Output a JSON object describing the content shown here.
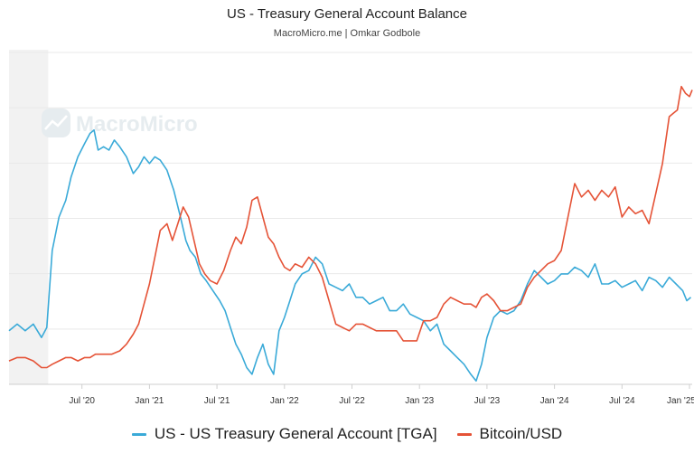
{
  "chart_data": {
    "type": "line",
    "title": "US - Treasury General Account Balance",
    "subtitle": "MacroMicro.me | Omkar Godbole",
    "watermark": "MacroMicro",
    "xlabel": "",
    "ylabel": "",
    "x_ticks": [
      "Jul '20",
      "Jan '21",
      "Jul '21",
      "Jan '22",
      "Jul '22",
      "Jan '23",
      "Jul '23",
      "Jan '24",
      "Jul '24",
      "Jan '25"
    ],
    "x_tick_times": [
      2020.5,
      2021.0,
      2021.5,
      2022.0,
      2022.5,
      2023.0,
      2023.5,
      2024.0,
      2024.5,
      2025.0
    ],
    "xlim": [
      2019.96,
      2025.02
    ],
    "shaded_region": [
      2019.96,
      2020.25
    ],
    "y_axis_labels": "hidden",
    "ylim": [
      0,
      100
    ],
    "series": [
      {
        "name": "US - US Treasury General Account [TGA]",
        "color": "#3aaad8",
        "points": [
          [
            2019.96,
            16
          ],
          [
            2020.02,
            18
          ],
          [
            2020.08,
            16
          ],
          [
            2020.14,
            18
          ],
          [
            2020.2,
            14
          ],
          [
            2020.24,
            17
          ],
          [
            2020.28,
            40
          ],
          [
            2020.33,
            50
          ],
          [
            2020.38,
            55
          ],
          [
            2020.42,
            62
          ],
          [
            2020.47,
            68
          ],
          [
            2020.52,
            72
          ],
          [
            2020.56,
            75
          ],
          [
            2020.59,
            76
          ],
          [
            2020.62,
            70
          ],
          [
            2020.66,
            71
          ],
          [
            2020.7,
            70
          ],
          [
            2020.74,
            73
          ],
          [
            2020.78,
            71
          ],
          [
            2020.83,
            68
          ],
          [
            2020.88,
            63
          ],
          [
            2020.92,
            65
          ],
          [
            2020.96,
            68
          ],
          [
            2021.0,
            66
          ],
          [
            2021.04,
            68
          ],
          [
            2021.08,
            67
          ],
          [
            2021.13,
            64
          ],
          [
            2021.18,
            58
          ],
          [
            2021.23,
            50
          ],
          [
            2021.27,
            43
          ],
          [
            2021.3,
            40
          ],
          [
            2021.34,
            38
          ],
          [
            2021.38,
            33
          ],
          [
            2021.42,
            31
          ],
          [
            2021.47,
            28
          ],
          [
            2021.52,
            25
          ],
          [
            2021.56,
            22
          ],
          [
            2021.6,
            17
          ],
          [
            2021.64,
            12
          ],
          [
            2021.68,
            9
          ],
          [
            2021.72,
            5
          ],
          [
            2021.76,
            3
          ],
          [
            2021.8,
            8
          ],
          [
            2021.84,
            12
          ],
          [
            2021.88,
            6
          ],
          [
            2021.92,
            3
          ],
          [
            2021.96,
            16
          ],
          [
            2022.0,
            20
          ],
          [
            2022.04,
            25
          ],
          [
            2022.08,
            30
          ],
          [
            2022.13,
            33
          ],
          [
            2022.18,
            34
          ],
          [
            2022.23,
            38
          ],
          [
            2022.28,
            36
          ],
          [
            2022.33,
            30
          ],
          [
            2022.38,
            29
          ],
          [
            2022.43,
            28
          ],
          [
            2022.48,
            30
          ],
          [
            2022.53,
            26
          ],
          [
            2022.58,
            26
          ],
          [
            2022.63,
            24
          ],
          [
            2022.68,
            25
          ],
          [
            2022.73,
            26
          ],
          [
            2022.78,
            22
          ],
          [
            2022.83,
            22
          ],
          [
            2022.88,
            24
          ],
          [
            2022.93,
            21
          ],
          [
            2022.98,
            20
          ],
          [
            2023.03,
            19
          ],
          [
            2023.08,
            16
          ],
          [
            2023.13,
            18
          ],
          [
            2023.18,
            12
          ],
          [
            2023.23,
            10
          ],
          [
            2023.28,
            8
          ],
          [
            2023.33,
            6
          ],
          [
            2023.38,
            3
          ],
          [
            2023.42,
            1
          ],
          [
            2023.46,
            6
          ],
          [
            2023.5,
            14
          ],
          [
            2023.55,
            20
          ],
          [
            2023.6,
            22
          ],
          [
            2023.65,
            21
          ],
          [
            2023.7,
            22
          ],
          [
            2023.75,
            25
          ],
          [
            2023.8,
            30
          ],
          [
            2023.85,
            34
          ],
          [
            2023.9,
            32
          ],
          [
            2023.95,
            30
          ],
          [
            2024.0,
            31
          ],
          [
            2024.05,
            33
          ],
          [
            2024.1,
            33
          ],
          [
            2024.15,
            35
          ],
          [
            2024.2,
            34
          ],
          [
            2024.25,
            32
          ],
          [
            2024.3,
            36
          ],
          [
            2024.35,
            30
          ],
          [
            2024.4,
            30
          ],
          [
            2024.45,
            31
          ],
          [
            2024.5,
            29
          ],
          [
            2024.55,
            30
          ],
          [
            2024.6,
            31
          ],
          [
            2024.65,
            28
          ],
          [
            2024.7,
            32
          ],
          [
            2024.75,
            31
          ],
          [
            2024.8,
            29
          ],
          [
            2024.85,
            32
          ],
          [
            2024.9,
            30
          ],
          [
            2024.95,
            28
          ],
          [
            2024.98,
            25
          ],
          [
            2025.01,
            26
          ]
        ]
      },
      {
        "name": "Bitcoin/USD",
        "color": "#e55337",
        "points": [
          [
            2019.96,
            7
          ],
          [
            2020.02,
            8
          ],
          [
            2020.08,
            8
          ],
          [
            2020.14,
            7
          ],
          [
            2020.2,
            5
          ],
          [
            2020.24,
            5
          ],
          [
            2020.28,
            6
          ],
          [
            2020.33,
            7
          ],
          [
            2020.38,
            8
          ],
          [
            2020.42,
            8
          ],
          [
            2020.47,
            7
          ],
          [
            2020.52,
            8
          ],
          [
            2020.56,
            8
          ],
          [
            2020.6,
            9
          ],
          [
            2020.66,
            9
          ],
          [
            2020.72,
            9
          ],
          [
            2020.78,
            10
          ],
          [
            2020.83,
            12
          ],
          [
            2020.88,
            15
          ],
          [
            2020.92,
            18
          ],
          [
            2020.96,
            24
          ],
          [
            2021.0,
            30
          ],
          [
            2021.04,
            38
          ],
          [
            2021.08,
            46
          ],
          [
            2021.13,
            48
          ],
          [
            2021.17,
            43
          ],
          [
            2021.21,
            48
          ],
          [
            2021.25,
            53
          ],
          [
            2021.29,
            50
          ],
          [
            2021.33,
            43
          ],
          [
            2021.37,
            36
          ],
          [
            2021.41,
            33
          ],
          [
            2021.45,
            31
          ],
          [
            2021.5,
            30
          ],
          [
            2021.55,
            34
          ],
          [
            2021.6,
            40
          ],
          [
            2021.64,
            44
          ],
          [
            2021.68,
            42
          ],
          [
            2021.72,
            47
          ],
          [
            2021.76,
            55
          ],
          [
            2021.8,
            56
          ],
          [
            2021.84,
            50
          ],
          [
            2021.88,
            44
          ],
          [
            2021.92,
            42
          ],
          [
            2021.96,
            38
          ],
          [
            2022.0,
            35
          ],
          [
            2022.04,
            34
          ],
          [
            2022.08,
            36
          ],
          [
            2022.13,
            35
          ],
          [
            2022.18,
            38
          ],
          [
            2022.23,
            36
          ],
          [
            2022.28,
            32
          ],
          [
            2022.33,
            25
          ],
          [
            2022.38,
            18
          ],
          [
            2022.43,
            17
          ],
          [
            2022.48,
            16
          ],
          [
            2022.53,
            18
          ],
          [
            2022.58,
            18
          ],
          [
            2022.63,
            17
          ],
          [
            2022.68,
            16
          ],
          [
            2022.73,
            16
          ],
          [
            2022.78,
            16
          ],
          [
            2022.83,
            16
          ],
          [
            2022.88,
            13
          ],
          [
            2022.93,
            13
          ],
          [
            2022.98,
            13
          ],
          [
            2023.03,
            19
          ],
          [
            2023.08,
            19
          ],
          [
            2023.13,
            20
          ],
          [
            2023.18,
            24
          ],
          [
            2023.23,
            26
          ],
          [
            2023.28,
            25
          ],
          [
            2023.33,
            24
          ],
          [
            2023.38,
            24
          ],
          [
            2023.42,
            23
          ],
          [
            2023.46,
            26
          ],
          [
            2023.5,
            27
          ],
          [
            2023.55,
            25
          ],
          [
            2023.6,
            22
          ],
          [
            2023.65,
            22
          ],
          [
            2023.7,
            23
          ],
          [
            2023.75,
            24
          ],
          [
            2023.8,
            29
          ],
          [
            2023.85,
            32
          ],
          [
            2023.9,
            34
          ],
          [
            2023.95,
            36
          ],
          [
            2024.0,
            37
          ],
          [
            2024.05,
            40
          ],
          [
            2024.1,
            50
          ],
          [
            2024.15,
            60
          ],
          [
            2024.2,
            56
          ],
          [
            2024.25,
            58
          ],
          [
            2024.3,
            55
          ],
          [
            2024.35,
            58
          ],
          [
            2024.4,
            56
          ],
          [
            2024.45,
            59
          ],
          [
            2024.5,
            50
          ],
          [
            2024.55,
            53
          ],
          [
            2024.6,
            51
          ],
          [
            2024.65,
            52
          ],
          [
            2024.7,
            48
          ],
          [
            2024.75,
            57
          ],
          [
            2024.8,
            66
          ],
          [
            2024.85,
            80
          ],
          [
            2024.88,
            81
          ],
          [
            2024.91,
            82
          ],
          [
            2024.94,
            89
          ],
          [
            2024.97,
            87
          ],
          [
            2025.0,
            86
          ],
          [
            2025.02,
            88
          ]
        ]
      }
    ]
  }
}
